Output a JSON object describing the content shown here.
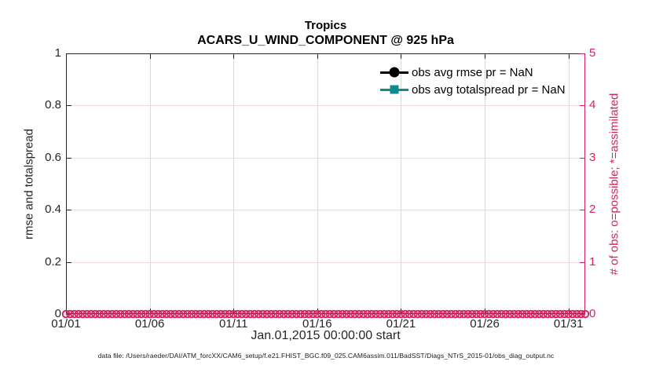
{
  "title": {
    "line1": "Tropics",
    "line2": "ACARS_U_WIND_COMPONENT @ 925 hPa"
  },
  "axes": {
    "left": {
      "label": "rmse and totalspread",
      "tick_labels": [
        "0",
        "0.2",
        "0.4",
        "0.6",
        "0.8",
        "1"
      ],
      "range": [
        0,
        1
      ]
    },
    "right": {
      "label": "# of obs: o=possible; *=assimilated",
      "tick_labels": [
        "0",
        "1",
        "2",
        "3",
        "4",
        "5"
      ],
      "range": [
        0,
        5
      ],
      "color": "#d9215f"
    },
    "x": {
      "label": "Jan.01,2015 00:00:00 start",
      "tick_labels": [
        "01/01",
        "01/06",
        "01/11",
        "01/16",
        "01/21",
        "01/26",
        "01/31"
      ],
      "tick_days": [
        0,
        5,
        10,
        15,
        20,
        25,
        30
      ],
      "range_days": [
        0,
        31
      ]
    }
  },
  "legend": {
    "entries": [
      {
        "label": "obs avg rmse pr = NaN",
        "marker": "circle",
        "color": "#000000"
      },
      {
        "label": "obs avg totalspread pr = NaN",
        "marker": "square",
        "color": "#0e8c8c"
      }
    ]
  },
  "chart_data": {
    "type": "line",
    "title": "Tropics",
    "subtitle": "ACARS_U_WIND_COMPONENT @ 925 hPa",
    "xlabel": "Jan.01,2015 00:00:00 start",
    "ylabel_left": "rmse and totalspread",
    "ylabel_right": "# of obs: o=possible; *=assimilated",
    "x_axis": {
      "tick_labels": [
        "01/01",
        "01/06",
        "01/11",
        "01/16",
        "01/21",
        "01/26",
        "01/31"
      ],
      "range_days": [
        0,
        31
      ]
    },
    "ylim_left": [
      0,
      1
    ],
    "ylim_right": [
      0,
      5
    ],
    "grid": true,
    "legend_position": "upper-right-inside-no-box",
    "series": [
      {
        "name": "obs avg rmse pr = NaN",
        "axis": "left",
        "marker": "filled-circle",
        "color": "#000000",
        "values": [],
        "note": "NaN — no data plotted"
      },
      {
        "name": "obs avg totalspread pr = NaN",
        "axis": "left",
        "marker": "filled-square",
        "color": "#0e8c8c",
        "values": [],
        "note": "NaN — no data plotted"
      },
      {
        "name": "# of obs possible",
        "axis": "right",
        "marker": "open-circle",
        "color": "#d9215f",
        "x_days": {
          "start": 0,
          "end": 31,
          "step": 0.25
        },
        "y_constant": 0
      }
    ]
  },
  "colors": {
    "pink": "#d9215f",
    "pink_gridline": "#f6d3e0",
    "gray_gridline": "#d9d9d9",
    "teal": "#0e8c8c",
    "axis_dark": "#262626"
  },
  "caption": "data file: /Users/raeder/DAI/ATM_forcXX/CAM6_setup/f.e21.FHIST_BGC.f09_025.CAM6assim.011/BadSST/Diags_NTrS_2015-01/obs_diag_output.nc"
}
